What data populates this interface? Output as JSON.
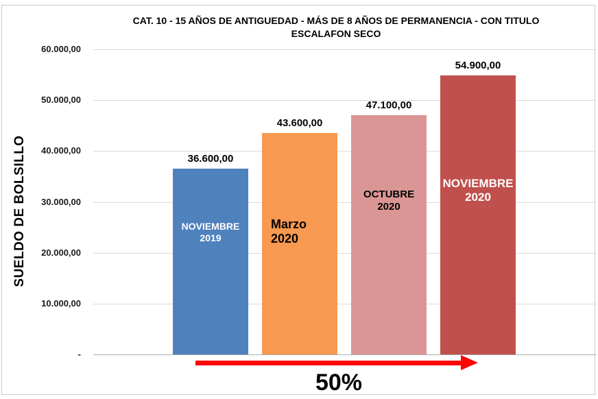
{
  "chart_data": {
    "type": "bar",
    "title": "CAT. 10 - 15 AÑOS DE ANTIGUEDAD - MÁS DE 8 AÑOS DE PERMANENCIA - CON TITULO",
    "subtitle": "ESCALAFON SECO",
    "ylabel": "SUELDO DE BOLSILLO",
    "xlabel": "",
    "ylim": [
      0,
      60000
    ],
    "grid": true,
    "legend": false,
    "y_ticks": [
      {
        "value": 60000,
        "label": "60.000,00"
      },
      {
        "value": 50000,
        "label": "50.000,00"
      },
      {
        "value": 40000,
        "label": "40.000,00"
      },
      {
        "value": 30000,
        "label": "30.000,00"
      },
      {
        "value": 20000,
        "label": "20.000,00"
      },
      {
        "value": 10000,
        "label": "10.000,00"
      },
      {
        "value": 0,
        "label": "-"
      }
    ],
    "categories": [
      "NOVIEMBRE 2019",
      "Marzo 2020",
      "OCTUBRE 2020",
      "NOVIEMBRE 2020"
    ],
    "values": [
      36600,
      43600,
      47100,
      54900
    ],
    "bars": [
      {
        "lines": [
          "NOVIEMBRE",
          "2019"
        ],
        "value": 36600,
        "value_label": "36.600,00",
        "color": "#4f81bd",
        "text_color": "#ffffff"
      },
      {
        "lines": [
          "Marzo",
          "2020"
        ],
        "value": 43600,
        "value_label": "43.600,00",
        "color": "#f79950",
        "text_color": "#000000"
      },
      {
        "lines": [
          "OCTUBRE",
          "2020"
        ],
        "value": 47100,
        "value_label": "47.100,00",
        "color": "#d99694",
        "text_color": "#000000"
      },
      {
        "lines": [
          "NOVIEMBRE",
          "2020"
        ],
        "value": 54900,
        "value_label": "54.900,00",
        "color": "#c0504d",
        "text_color": "#ffffff"
      }
    ],
    "annotation": {
      "text": "50%",
      "arrow_color": "#fb0505"
    }
  }
}
